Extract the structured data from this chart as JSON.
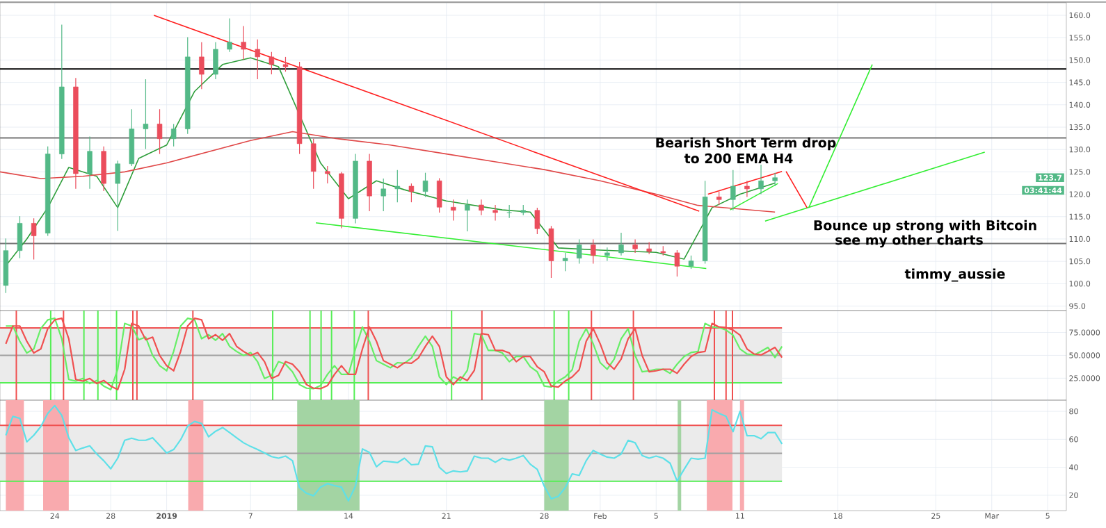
{
  "chart_data": [
    {
      "type": "candlestick",
      "x": [
        "2018-12-20T12:00",
        "2018-12-21T12:00",
        "2018-12-22T12:00",
        "2018-12-23T12:00",
        "2018-12-24T12:00",
        "2018-12-25T12:00",
        "2018-12-26T12:00",
        "2018-12-27T12:00",
        "2018-12-28T12:00",
        "2018-12-29T12:00",
        "2018-12-30T12:00",
        "2018-12-31T12:00",
        "2019-01-01T12:00",
        "2019-01-02T12:00",
        "2019-01-03T12:00",
        "2019-01-04T12:00",
        "2019-01-05T12:00",
        "2019-01-06T12:00",
        "2019-01-07T12:00",
        "2019-01-08T12:00",
        "2019-01-09T12:00",
        "2019-01-10T12:00",
        "2019-01-11T12:00",
        "2019-01-12T12:00",
        "2019-01-13T12:00",
        "2019-01-14T12:00",
        "2019-01-15T12:00",
        "2019-01-16T12:00",
        "2019-01-17T12:00",
        "2019-01-18T12:00",
        "2019-01-19T12:00",
        "2019-01-20T12:00",
        "2019-01-21T12:00",
        "2019-01-22T12:00",
        "2019-01-23T12:00",
        "2019-01-24T12:00",
        "2019-01-25T12:00",
        "2019-01-26T12:00",
        "2019-01-27T12:00",
        "2019-01-28T12:00",
        "2019-01-29T12:00",
        "2019-01-30T12:00",
        "2019-01-31T12:00",
        "2019-02-01T12:00",
        "2019-02-02T12:00",
        "2019-02-03T12:00",
        "2019-02-04T12:00",
        "2019-02-05T12:00",
        "2019-02-06T12:00",
        "2019-02-07T12:00",
        "2019-02-08T12:00",
        "2019-02-09T12:00",
        "2019-02-10T12:00",
        "2019-02-11T12:00",
        "2019-02-12T12:00",
        "2019-02-13T12:00"
      ],
      "ohlc": [
        [
          99.6,
          110.1,
          97.9,
          107.4
        ],
        [
          107.4,
          115.1,
          105.7,
          113.5
        ],
        [
          113.5,
          114.6,
          105.4,
          110.7
        ],
        [
          111.3,
          130.7,
          110.7,
          129.0
        ],
        [
          129.0,
          157.9,
          127.9,
          144.0
        ],
        [
          144.0,
          146.0,
          121.2,
          124.6
        ],
        [
          124.6,
          132.9,
          121.2,
          129.6
        ],
        [
          129.6,
          130.7,
          120.7,
          122.4
        ],
        [
          122.4,
          127.5,
          111.8,
          126.8
        ],
        [
          126.8,
          139.0,
          126.3,
          134.6
        ],
        [
          134.6,
          145.7,
          130.1,
          135.7
        ],
        [
          135.7,
          139.0,
          129.0,
          132.4
        ],
        [
          132.4,
          135.7,
          130.7,
          134.6
        ],
        [
          134.6,
          155.1,
          133.5,
          150.7
        ],
        [
          150.7,
          154.0,
          143.5,
          146.8
        ],
        [
          146.8,
          154.0,
          145.7,
          152.4
        ],
        [
          152.4,
          159.3,
          151.8,
          154.0
        ],
        [
          154.0,
          157.6,
          150.1,
          152.4
        ],
        [
          152.4,
          154.6,
          145.7,
          150.7
        ],
        [
          150.7,
          151.8,
          146.8,
          149.0
        ],
        [
          149.0,
          150.7,
          147.4,
          148.5
        ],
        [
          148.5,
          149.6,
          129.0,
          131.3
        ],
        [
          131.3,
          132.4,
          121.2,
          125.1
        ],
        [
          125.1,
          126.3,
          122.4,
          124.6
        ],
        [
          124.6,
          125.0,
          112.4,
          114.6
        ],
        [
          114.6,
          129.0,
          113.5,
          127.4
        ],
        [
          127.4,
          129.0,
          116.2,
          119.6
        ],
        [
          119.6,
          123.5,
          116.2,
          121.2
        ],
        [
          121.2,
          125.4,
          118.2,
          121.8
        ],
        [
          121.8,
          122.4,
          118.2,
          120.6
        ],
        [
          120.6,
          124.8,
          119.4,
          123.0
        ],
        [
          123.0,
          123.6,
          115.9,
          117.1
        ],
        [
          117.1,
          118.8,
          114.1,
          116.4
        ],
        [
          116.4,
          118.8,
          111.7,
          117.6
        ],
        [
          117.6,
          118.8,
          115.3,
          116.4
        ],
        [
          116.4,
          117.6,
          114.1,
          115.9
        ],
        [
          115.9,
          117.6,
          114.7,
          115.9
        ],
        [
          115.9,
          117.6,
          115.3,
          116.4
        ],
        [
          116.4,
          117.0,
          111.1,
          112.3
        ],
        [
          112.3,
          112.9,
          101.3,
          105.1
        ],
        [
          105.1,
          106.9,
          102.8,
          105.7
        ],
        [
          105.7,
          109.9,
          104.5,
          108.7
        ],
        [
          108.7,
          109.9,
          104.5,
          106.3
        ],
        [
          106.3,
          108.1,
          105.1,
          106.9
        ],
        [
          106.9,
          111.4,
          106.3,
          108.7
        ],
        [
          108.7,
          109.9,
          106.9,
          107.8
        ],
        [
          107.8,
          109.3,
          106.6,
          107.2
        ],
        [
          107.2,
          108.4,
          106.3,
          106.9
        ],
        [
          106.9,
          107.5,
          101.6,
          103.9
        ],
        [
          103.9,
          106.3,
          103.3,
          105.1
        ],
        [
          105.1,
          123.0,
          104.5,
          119.4
        ],
        [
          119.4,
          120.6,
          117.6,
          118.8
        ],
        [
          118.8,
          125.4,
          116.4,
          121.8
        ],
        [
          121.8,
          123.0,
          119.4,
          121.2
        ],
        [
          121.2,
          126.6,
          120.0,
          123.0
        ],
        [
          123.0,
          124.8,
          121.8,
          123.7
        ]
      ],
      "colors": [
        "#53b987",
        "#53b987",
        "#eb4d5c",
        "#53b987",
        "#53b987",
        "#eb4d5c",
        "#53b987",
        "#eb4d5c",
        "#53b987",
        "#53b987",
        "#53b987",
        "#eb4d5c",
        "#53b987",
        "#53b987",
        "#eb4d5c",
        "#53b987",
        "#53b987",
        "#eb4d5c",
        "#eb4d5c",
        "#eb4d5c",
        "#eb4d5c",
        "#eb4d5c",
        "#eb4d5c",
        "#eb4d5c",
        "#eb4d5c",
        "#53b987",
        "#eb4d5c",
        "#53b987",
        "#53b987",
        "#eb4d5c",
        "#53b987",
        "#eb4d5c",
        "#eb4d5c",
        "#53b987",
        "#eb4d5c",
        "#eb4d5c",
        "#53b987",
        "#53b987",
        "#eb4d5c",
        "#eb4d5c",
        "#53b987",
        "#53b987",
        "#eb4d5c",
        "#53b987",
        "#53b987",
        "#eb4d5c",
        "#eb4d5c",
        "#eb4d5c",
        "#eb4d5c",
        "#53b987",
        "#53b987",
        "#eb4d5c",
        "#53b987",
        "#eb4d5c",
        "#53b987",
        "#53b987"
      ],
      "series": [
        {
          "type": "line",
          "color": "#2e9e3a",
          "x": [
            "2018-12-20T12:00",
            "2018-12-22",
            "2018-12-23T12:00",
            "2018-12-25",
            "2018-12-27",
            "2018-12-28T12:00",
            "2018-12-30",
            "2019-01-01",
            "2019-01-03",
            "2019-01-05",
            "2019-01-07",
            "2019-01-09",
            "2019-01-12",
            "2019-01-14",
            "2019-01-16",
            "2019-01-18",
            "2019-01-21",
            "2019-01-25",
            "2019-01-27",
            "2019-01-29",
            "2019-02-01",
            "2019-02-05",
            "2019-02-07",
            "2019-02-09",
            "2019-02-11",
            "2019-02-13T12:00"
          ],
          "values": [
            104,
            110,
            117,
            126,
            124,
            117,
            128,
            131,
            143,
            149,
            150.5,
            148.5,
            127,
            119,
            123,
            121,
            118.5,
            116.5,
            116,
            108,
            107.5,
            107,
            105.5,
            117,
            120,
            122.5
          ]
        },
        {
          "type": "line",
          "color": "#e04848",
          "x": [
            "2018-12-20T02:00",
            "2018-12-23",
            "2018-12-26",
            "2018-12-29",
            "2019-01-01",
            "2019-01-04",
            "2019-01-07",
            "2019-01-10",
            "2019-01-13",
            "2019-01-17",
            "2019-01-21",
            "2019-01-25",
            "2019-01-28",
            "2019-02-01",
            "2019-02-05",
            "2019-02-08",
            "2019-02-13T12:00"
          ],
          "values": [
            125.0,
            123.5,
            124.0,
            125.0,
            127.0,
            129.5,
            132.0,
            134.0,
            132.5,
            131.0,
            129.0,
            127.0,
            125.5,
            123.0,
            120.0,
            117.5,
            116.0
          ]
        },
        {
          "type": "line",
          "color": "#ff2020",
          "x": [
            "2018-12-31T02:00",
            "2019-02-08T02:00"
          ],
          "values": [
            160.0,
            116.2
          ]
        },
        {
          "type": "line",
          "color": "#33ee33",
          "x": [
            "2019-01-11T16:00",
            "2019-02-08T14:00"
          ],
          "values": [
            113.6,
            103.4
          ]
        },
        {
          "type": "line",
          "color": "#33ee33",
          "x": [
            "2019-02-12T19:00",
            "2019-02-28T12:00"
          ],
          "values": [
            114.0,
            129.4
          ]
        },
        {
          "type": "line",
          "color": "#ff2020",
          "x": [
            "2019-02-08T17:00",
            "2019-02-14"
          ],
          "values": [
            120.0,
            125.1
          ]
        },
        {
          "type": "line",
          "color": "#33ee33",
          "x": [
            "2019-02-10T07:00",
            "2019-02-13T17:00"
          ],
          "values": [
            116.5,
            122.4
          ]
        },
        {
          "type": "line",
          "color": "#ff2020",
          "x": [
            "2019-02-14T07:00",
            "2019-02-15T19:00"
          ],
          "values": [
            125.1,
            117.0
          ]
        },
        {
          "type": "line",
          "color": "#33ee33",
          "x": [
            "2019-02-15T22:00",
            "2019-02-20T11:00"
          ],
          "values": [
            117.0,
            149.0
          ]
        }
      ],
      "xlim": [
        "2018-12-20T02:00",
        "2019-03-06T08:00"
      ],
      "ylim": [
        94.0,
        162.8
      ],
      "xticks": [
        {
          "value": "2018-12-24",
          "label": null
        },
        {
          "value": "2018-12-28",
          "label": null
        },
        {
          "value": "2019-01-01",
          "label": null
        },
        {
          "value": "2019-01-07",
          "label": null
        },
        {
          "value": "2019-01-14",
          "label": null
        },
        {
          "value": "2019-01-21",
          "label": null
        },
        {
          "value": "2019-01-28",
          "label": null
        },
        {
          "value": "2019-02-01",
          "label": null
        },
        {
          "value": "2019-02-05",
          "label": null
        },
        {
          "value": "2019-02-11",
          "label": null
        },
        {
          "value": "2019-02-18",
          "label": null
        },
        {
          "value": "2019-02-25",
          "label": null
        },
        {
          "value": "2019-03-01",
          "label": null
        },
        {
          "value": "2019-03-05",
          "label": null
        }
      ],
      "yticks": [
        {
          "value": 95,
          "label": "95.0"
        },
        {
          "value": 100,
          "label": "100.0"
        },
        {
          "value": 105,
          "label": "105.0"
        },
        {
          "value": 110,
          "label": "110.0"
        },
        {
          "value": 115,
          "label": "115.0"
        },
        {
          "value": 120,
          "label": "120.0"
        },
        {
          "value": 125,
          "label": "125.0"
        },
        {
          "value": 130,
          "label": "130.0"
        },
        {
          "value": 135,
          "label": "135.0"
        },
        {
          "value": 140,
          "label": "140.0"
        },
        {
          "value": 145,
          "label": "145.0"
        },
        {
          "value": 150,
          "label": "150.0"
        },
        {
          "value": 155,
          "label": "155.0"
        },
        {
          "value": 160,
          "label": "160.0"
        }
      ],
      "grid": true,
      "tick_labels": "y",
      "ref_lines": [
        {
          "axis": "y",
          "value": 148,
          "color": "#000000"
        },
        {
          "axis": "y",
          "value": 132.6,
          "color": "#777777"
        },
        {
          "axis": "y",
          "value": 109,
          "color": "#777777"
        }
      ],
      "annotations": [
        "Bearish Short Term drop",
        "to 200 EMA H4",
        "Bounce up strong with Bitcoin",
        "see my other charts",
        "timmy_aussie",
        {
          "text": "123.7",
          "y": 123.7
        },
        "03:41:44"
      ]
    },
    {
      "type": "line",
      "x": [
        "2018-12-20T12:00",
        "2018-12-21",
        "2018-12-21T12:00",
        "2018-12-22",
        "2018-12-22T12:00",
        "2018-12-23",
        "2018-12-23T12:00",
        "2018-12-24",
        "2018-12-24T12:00",
        "2018-12-25",
        "2018-12-25T12:00",
        "2018-12-26",
        "2018-12-26T12:00",
        "2018-12-27",
        "2018-12-27T12:00",
        "2018-12-28",
        "2018-12-28T12:00",
        "2018-12-29",
        "2018-12-29T12:00",
        "2018-12-30",
        "2018-12-30T12:00",
        "2018-12-31",
        "2018-12-31T12:00",
        "2019-01-01",
        "2019-01-01T12:00",
        "2019-01-02",
        "2019-01-02T12:00",
        "2019-01-03",
        "2019-01-03T12:00",
        "2019-01-04",
        "2019-01-04T12:00",
        "2019-01-05",
        "2019-01-05T12:00",
        "2019-01-06",
        "2019-01-06T12:00",
        "2019-01-07",
        "2019-01-07T12:00",
        "2019-01-08",
        "2019-01-08T12:00",
        "2019-01-09",
        "2019-01-09T12:00",
        "2019-01-10",
        "2019-01-10T12:00",
        "2019-01-11",
        "2019-01-11T12:00",
        "2019-01-12",
        "2019-01-12T12:00",
        "2019-01-13",
        "2019-01-13T12:00",
        "2019-01-14",
        "2019-01-14T12:00",
        "2019-01-15",
        "2019-01-15T12:00",
        "2019-01-16",
        "2019-01-16T12:00",
        "2019-01-17",
        "2019-01-17T12:00",
        "2019-01-18",
        "2019-01-18T12:00",
        "2019-01-19",
        "2019-01-19T12:00",
        "2019-01-20",
        "2019-01-20T12:00",
        "2019-01-21",
        "2019-01-21T12:00",
        "2019-01-22",
        "2019-01-22T12:00",
        "2019-01-23",
        "2019-01-23T12:00",
        "2019-01-24",
        "2019-01-24T12:00",
        "2019-01-25",
        "2019-01-25T12:00",
        "2019-01-26",
        "2019-01-26T12:00",
        "2019-01-27",
        "2019-01-27T12:00",
        "2019-01-28",
        "2019-01-28T12:00",
        "2019-01-29",
        "2019-01-29T12:00",
        "2019-01-30",
        "2019-01-30T12:00",
        "2019-01-31",
        "2019-01-31T12:00",
        "2019-02-01",
        "2019-02-01T12:00",
        "2019-02-02",
        "2019-02-02T12:00",
        "2019-02-03",
        "2019-02-03T12:00",
        "2019-02-04",
        "2019-02-04T12:00",
        "2019-02-05",
        "2019-02-05T12:00",
        "2019-02-06",
        "2019-02-06T12:00",
        "2019-02-07",
        "2019-02-07T12:00",
        "2019-02-08",
        "2019-02-08T12:00",
        "2019-02-09",
        "2019-02-09T12:00",
        "2019-02-10",
        "2019-02-10T12:00",
        "2019-02-11",
        "2019-02-11T12:00",
        "2019-02-12",
        "2019-02-12T12:00",
        "2019-02-13",
        "2019-02-13T12:00",
        "2019-02-14"
      ],
      "series": [
        {
          "color": "#66ee66",
          "values": [
            82.1,
            82.1,
            65.4,
            52.6,
            57.0,
            79.3,
            88.8,
            90.5,
            68.2,
            23.6,
            21.9,
            24.7,
            19.2,
            22.5,
            16.4,
            12.5,
            34.8,
            84.9,
            82.1,
            67.1,
            69.9,
            49.8,
            38.7,
            33.1,
            54.3,
            82.1,
            90.5,
            88.8,
            68.2,
            72.6,
            66.5,
            73.8,
            59.8,
            54.3,
            49.8,
            53.1,
            43.1,
            24.7,
            28.1,
            43.1,
            40.3,
            32.0,
            18.0,
            14.1,
            13.6,
            16.9,
            29.2,
            38.7,
            29.2,
            29.2,
            57.0,
            81.0,
            65.4,
            44.2,
            40.3,
            36.4,
            42.0,
            41.4,
            47.0,
            59.8,
            71.0,
            59.8,
            26.4,
            18.0,
            26.4,
            22.5,
            33.6,
            73.8,
            72.6,
            55.4,
            55.4,
            52.6,
            43.1,
            48.7,
            48.7,
            37.5,
            32.0,
            16.4,
            15.3,
            21.9,
            26.4,
            34.2,
            65.4,
            79.3,
            62.6,
            42.0,
            34.8,
            45.9,
            68.2,
            79.3,
            49.8,
            32.0,
            33.1,
            34.8,
            34.8,
            30.3,
            40.3,
            48.7,
            53.1,
            54.3,
            84.9,
            81.0,
            80.4,
            77.7,
            72.1,
            57.0,
            51.5,
            50.4,
            54.3,
            58.7,
            47.6,
            59.8
          ]
        },
        {
          "color": "#f05050",
          "values": [
            62.6,
            82.1,
            82.1,
            65.4,
            52.6,
            57.0,
            79.3,
            88.8,
            90.5,
            68.2,
            23.6,
            21.9,
            24.7,
            19.2,
            22.5,
            16.4,
            12.5,
            34.8,
            84.9,
            82.1,
            67.1,
            69.9,
            49.8,
            38.7,
            33.1,
            54.3,
            82.1,
            90.5,
            88.8,
            68.2,
            72.6,
            66.5,
            73.8,
            59.8,
            54.3,
            49.8,
            53.1,
            43.1,
            24.7,
            28.1,
            43.1,
            40.3,
            32.0,
            18.0,
            14.1,
            13.6,
            16.9,
            29.2,
            38.7,
            29.2,
            29.2,
            57.0,
            81.0,
            65.4,
            44.2,
            40.3,
            36.4,
            42.0,
            41.4,
            47.0,
            59.8,
            71.0,
            59.8,
            26.4,
            18.0,
            26.4,
            22.5,
            33.6,
            73.8,
            72.6,
            55.4,
            55.4,
            52.6,
            43.1,
            48.7,
            48.7,
            37.5,
            32.0,
            16.4,
            15.3,
            21.9,
            26.4,
            34.2,
            65.4,
            79.3,
            62.6,
            42.0,
            34.8,
            45.9,
            68.2,
            79.3,
            49.8,
            32.0,
            33.1,
            34.8,
            34.8,
            30.3,
            40.3,
            48.7,
            53.1,
            54.3,
            84.9,
            81.0,
            80.4,
            77.7,
            72.1,
            57.0,
            51.5,
            50.4,
            54.3,
            58.7,
            47.6
          ]
        }
      ],
      "xlim": [
        "2018-12-20T02:00",
        "2019-03-06T08:00"
      ],
      "ylim": [
        1,
        99
      ],
      "xticks": [
        {
          "value": "2018-12-24",
          "label": null
        },
        {
          "value": "2018-12-28",
          "label": null
        },
        {
          "value": "2019-01-01",
          "label": null
        },
        {
          "value": "2019-01-07",
          "label": null
        },
        {
          "value": "2019-01-14",
          "label": null
        },
        {
          "value": "2019-01-21",
          "label": null
        },
        {
          "value": "2019-01-28",
          "label": null
        },
        {
          "value": "2019-02-01",
          "label": null
        },
        {
          "value": "2019-02-05",
          "label": null
        },
        {
          "value": "2019-02-11",
          "label": null
        },
        {
          "value": "2019-02-18",
          "label": null
        },
        {
          "value": "2019-02-25",
          "label": null
        },
        {
          "value": "2019-03-01",
          "label": null
        },
        {
          "value": "2019-03-05",
          "label": null
        }
      ],
      "yticks": [
        {
          "value": 25,
          "label": "25.0000"
        },
        {
          "value": 50,
          "label": "50.0000"
        },
        {
          "value": 75,
          "label": "75.0000"
        }
      ],
      "grid": true,
      "tick_labels": "y",
      "bands": [
        {
          "axis": "y",
          "from": 20,
          "to": 80,
          "color": "#ebebeb"
        }
      ],
      "ref_lines": [
        {
          "axis": "y",
          "value": 80,
          "color": "#f05050"
        },
        {
          "axis": "y",
          "value": 50,
          "color": "#a0a0a0"
        },
        {
          "axis": "y",
          "value": 20,
          "color": "#55ee55"
        },
        {
          "axis": "x",
          "value": "2018-12-21T06:00",
          "color": "#f05050"
        },
        {
          "axis": "x",
          "value": "2018-12-24T15:00",
          "color": "#f05050"
        },
        {
          "axis": "x",
          "value": "2018-12-29T14:00",
          "color": "#f05050"
        },
        {
          "axis": "x",
          "value": "2018-12-29T21:00",
          "color": "#f05050"
        },
        {
          "axis": "x",
          "value": "2019-01-02T21:00",
          "color": "#f05050"
        },
        {
          "axis": "x",
          "value": "2019-01-15T10:00",
          "color": "#f05050"
        },
        {
          "axis": "x",
          "value": "2019-01-23T13:00",
          "color": "#f05050"
        },
        {
          "axis": "x",
          "value": "2019-01-31T09:00",
          "color": "#f05050"
        },
        {
          "axis": "x",
          "value": "2019-02-03T09:00",
          "color": "#f05050"
        },
        {
          "axis": "x",
          "value": "2019-02-09T04:00",
          "color": "#f05050"
        },
        {
          "axis": "x",
          "value": "2019-02-10",
          "color": "#f05050"
        },
        {
          "axis": "x",
          "value": "2019-02-10T11:00",
          "color": "#f05050"
        },
        {
          "axis": "x",
          "value": "2018-12-23T17:00",
          "color": "#55ee55"
        },
        {
          "axis": "x",
          "value": "2018-12-26T02:00",
          "color": "#55ee55"
        },
        {
          "axis": "x",
          "value": "2018-12-27T02:00",
          "color": "#55ee55"
        },
        {
          "axis": "x",
          "value": "2018-12-28T10:00",
          "color": "#55ee55"
        },
        {
          "axis": "x",
          "value": "2019-01-08T14:00",
          "color": "#55ee55"
        },
        {
          "axis": "x",
          "value": "2019-01-11T06:00",
          "color": "#55ee55"
        },
        {
          "axis": "x",
          "value": "2019-01-12T01:00",
          "color": "#55ee55"
        },
        {
          "axis": "x",
          "value": "2019-01-12T19:00",
          "color": "#55ee55"
        },
        {
          "axis": "x",
          "value": "2019-01-14T10:00",
          "color": "#55ee55"
        },
        {
          "axis": "x",
          "value": "2019-01-21T09:00",
          "color": "#55ee55"
        },
        {
          "axis": "x",
          "value": "2019-01-28T17:00",
          "color": "#55ee55"
        },
        {
          "axis": "x",
          "value": "2019-01-29T18:00",
          "color": "#55ee55"
        }
      ]
    },
    {
      "type": "line",
      "x": [
        "2018-12-20T12:00",
        "2018-12-21",
        "2018-12-21T12:00",
        "2018-12-22",
        "2018-12-22T12:00",
        "2018-12-23",
        "2018-12-23T12:00",
        "2018-12-24",
        "2018-12-24T12:00",
        "2018-12-25",
        "2018-12-25T12:00",
        "2018-12-26",
        "2018-12-26T12:00",
        "2018-12-27",
        "2018-12-27T12:00",
        "2018-12-28",
        "2018-12-28T12:00",
        "2018-12-29",
        "2018-12-29T12:00",
        "2018-12-30",
        "2018-12-30T12:00",
        "2018-12-31",
        "2018-12-31T12:00",
        "2019-01-01",
        "2019-01-01T12:00",
        "2019-01-02",
        "2019-01-02T12:00",
        "2019-01-03",
        "2019-01-03T12:00",
        "2019-01-04",
        "2019-01-04T12:00",
        "2019-01-05",
        "2019-01-05T12:00",
        "2019-01-06",
        "2019-01-06T12:00",
        "2019-01-07",
        "2019-01-07T12:00",
        "2019-01-08",
        "2019-01-08T12:00",
        "2019-01-09",
        "2019-01-09T12:00",
        "2019-01-10",
        "2019-01-10T12:00",
        "2019-01-11",
        "2019-01-11T12:00",
        "2019-01-12",
        "2019-01-12T12:00",
        "2019-01-13",
        "2019-01-13T12:00",
        "2019-01-14",
        "2019-01-14T12:00",
        "2019-01-15",
        "2019-01-15T12:00",
        "2019-01-16",
        "2019-01-16T12:00",
        "2019-01-17",
        "2019-01-17T12:00",
        "2019-01-18",
        "2019-01-18T12:00",
        "2019-01-19",
        "2019-01-19T12:00",
        "2019-01-20",
        "2019-01-20T12:00",
        "2019-01-21",
        "2019-01-21T12:00",
        "2019-01-22",
        "2019-01-22T12:00",
        "2019-01-23",
        "2019-01-23T12:00",
        "2019-01-24",
        "2019-01-24T12:00",
        "2019-01-25",
        "2019-01-25T12:00",
        "2019-01-26",
        "2019-01-26T12:00",
        "2019-01-27",
        "2019-01-27T12:00",
        "2019-01-28",
        "2019-01-28T12:00",
        "2019-01-29",
        "2019-01-29T12:00",
        "2019-01-30",
        "2019-01-30T12:00",
        "2019-01-31",
        "2019-01-31T12:00",
        "2019-02-01",
        "2019-02-01T12:00",
        "2019-02-02",
        "2019-02-02T12:00",
        "2019-02-03",
        "2019-02-03T12:00",
        "2019-02-04",
        "2019-02-04T12:00",
        "2019-02-05",
        "2019-02-05T12:00",
        "2019-02-06",
        "2019-02-06T12:00",
        "2019-02-07",
        "2019-02-07T12:00",
        "2019-02-08",
        "2019-02-08T12:00",
        "2019-02-09",
        "2019-02-09T12:00",
        "2019-02-10",
        "2019-02-10T12:00",
        "2019-02-11",
        "2019-02-11T12:00",
        "2019-02-12",
        "2019-02-12T12:00",
        "2019-02-13",
        "2019-02-13T12:00",
        "2019-02-14"
      ],
      "series": [
        {
          "color": "#5ee0e8",
          "values": [
            62.9,
            76.4,
            75.0,
            58.2,
            62.9,
            69.1,
            78.6,
            84.1,
            77.1,
            61.1,
            52.0,
            53.8,
            55.3,
            49.5,
            44.7,
            38.9,
            46.5,
            59.3,
            60.8,
            59.3,
            59.3,
            61.1,
            55.7,
            50.2,
            52.7,
            59.7,
            69.5,
            72.8,
            71.3,
            61.8,
            65.8,
            68.4,
            64.8,
            61.1,
            57.5,
            54.9,
            52.7,
            50.2,
            47.6,
            46.5,
            48.0,
            44.7,
            25.4,
            21.4,
            19.6,
            25.8,
            28.3,
            26.9,
            25.8,
            16.0,
            26.5,
            53.1,
            50.6,
            40.4,
            44.4,
            44.0,
            43.3,
            46.5,
            41.8,
            42.2,
            55.3,
            54.6,
            40.0,
            35.6,
            37.4,
            36.7,
            37.4,
            48.0,
            46.5,
            46.5,
            43.6,
            46.5,
            45.1,
            46.5,
            48.4,
            42.2,
            38.5,
            26.5,
            17.4,
            19.2,
            25.4,
            35.3,
            34.2,
            44.7,
            52.0,
            49.5,
            47.3,
            46.5,
            49.5,
            59.3,
            57.5,
            48.4,
            46.5,
            48.0,
            46.5,
            42.9,
            30.2,
            38.5,
            46.5,
            45.8,
            46.5,
            81.1,
            78.6,
            76.4,
            65.5,
            80.0,
            62.6,
            62.6,
            60.4,
            64.8,
            64.8,
            56.7
          ]
        }
      ],
      "xlim": [
        "2018-12-20T02:00",
        "2019-03-06T08:00"
      ],
      "ylim": [
        9,
        88
      ],
      "xticks": [
        {
          "value": "2018-12-24",
          "label": "24"
        },
        {
          "value": "2018-12-28",
          "label": "28"
        },
        {
          "value": "2019-01-01",
          "label": "**2019**"
        },
        {
          "value": "2019-01-07",
          "label": "7"
        },
        {
          "value": "2019-01-14",
          "label": "14"
        },
        {
          "value": "2019-01-21",
          "label": "21"
        },
        {
          "value": "2019-01-28",
          "label": "28"
        },
        {
          "value": "2019-02-01",
          "label": "Feb"
        },
        {
          "value": "2019-02-05",
          "label": "5"
        },
        {
          "value": "2019-02-11",
          "label": "11"
        },
        {
          "value": "2019-02-18",
          "label": "18"
        },
        {
          "value": "2019-02-25",
          "label": "25"
        },
        {
          "value": "2019-03-01",
          "label": "Mar"
        },
        {
          "value": "2019-03-05",
          "label": "5"
        }
      ],
      "yticks": [
        20,
        40,
        60,
        80
      ],
      "grid": true,
      "bands": [
        {
          "axis": "y",
          "from": 30,
          "to": 70,
          "color": "#ebebeb"
        },
        {
          "axis": "x",
          "from": "2018-12-20T12:00",
          "to": "2018-12-21T19:00",
          "color": "#f9aaae"
        },
        {
          "axis": "x",
          "from": "2018-12-23T04:00",
          "to": "2018-12-25",
          "color": "#f9aaae"
        },
        {
          "axis": "x",
          "from": "2019-01-02T13:00",
          "to": "2019-01-03T15:00",
          "color": "#f9aaae"
        },
        {
          "axis": "x",
          "from": "2019-02-08T15:00",
          "to": "2019-02-10T11:00",
          "color": "#f9aaae"
        },
        {
          "axis": "x",
          "from": "2019-02-11",
          "to": "2019-02-11T07:00",
          "color": "#f9aaae"
        },
        {
          "axis": "x",
          "from": "2019-01-10T08:00",
          "to": "2019-01-14T19:00",
          "color": "#a3d4a3"
        },
        {
          "axis": "x",
          "from": "2019-01-28",
          "to": "2019-01-29T18:00",
          "color": "#a3d4a3"
        },
        {
          "axis": "x",
          "from": "2019-02-06T13:00",
          "to": "2019-02-06T19:00",
          "color": "#a3d4a3"
        }
      ],
      "ref_lines": [
        {
          "axis": "y",
          "value": 70,
          "color": "#f05050"
        },
        {
          "axis": "y",
          "value": 50,
          "color": "#a0a0a0"
        },
        {
          "axis": "y",
          "value": 30,
          "color": "#55ee55"
        }
      ]
    }
  ]
}
